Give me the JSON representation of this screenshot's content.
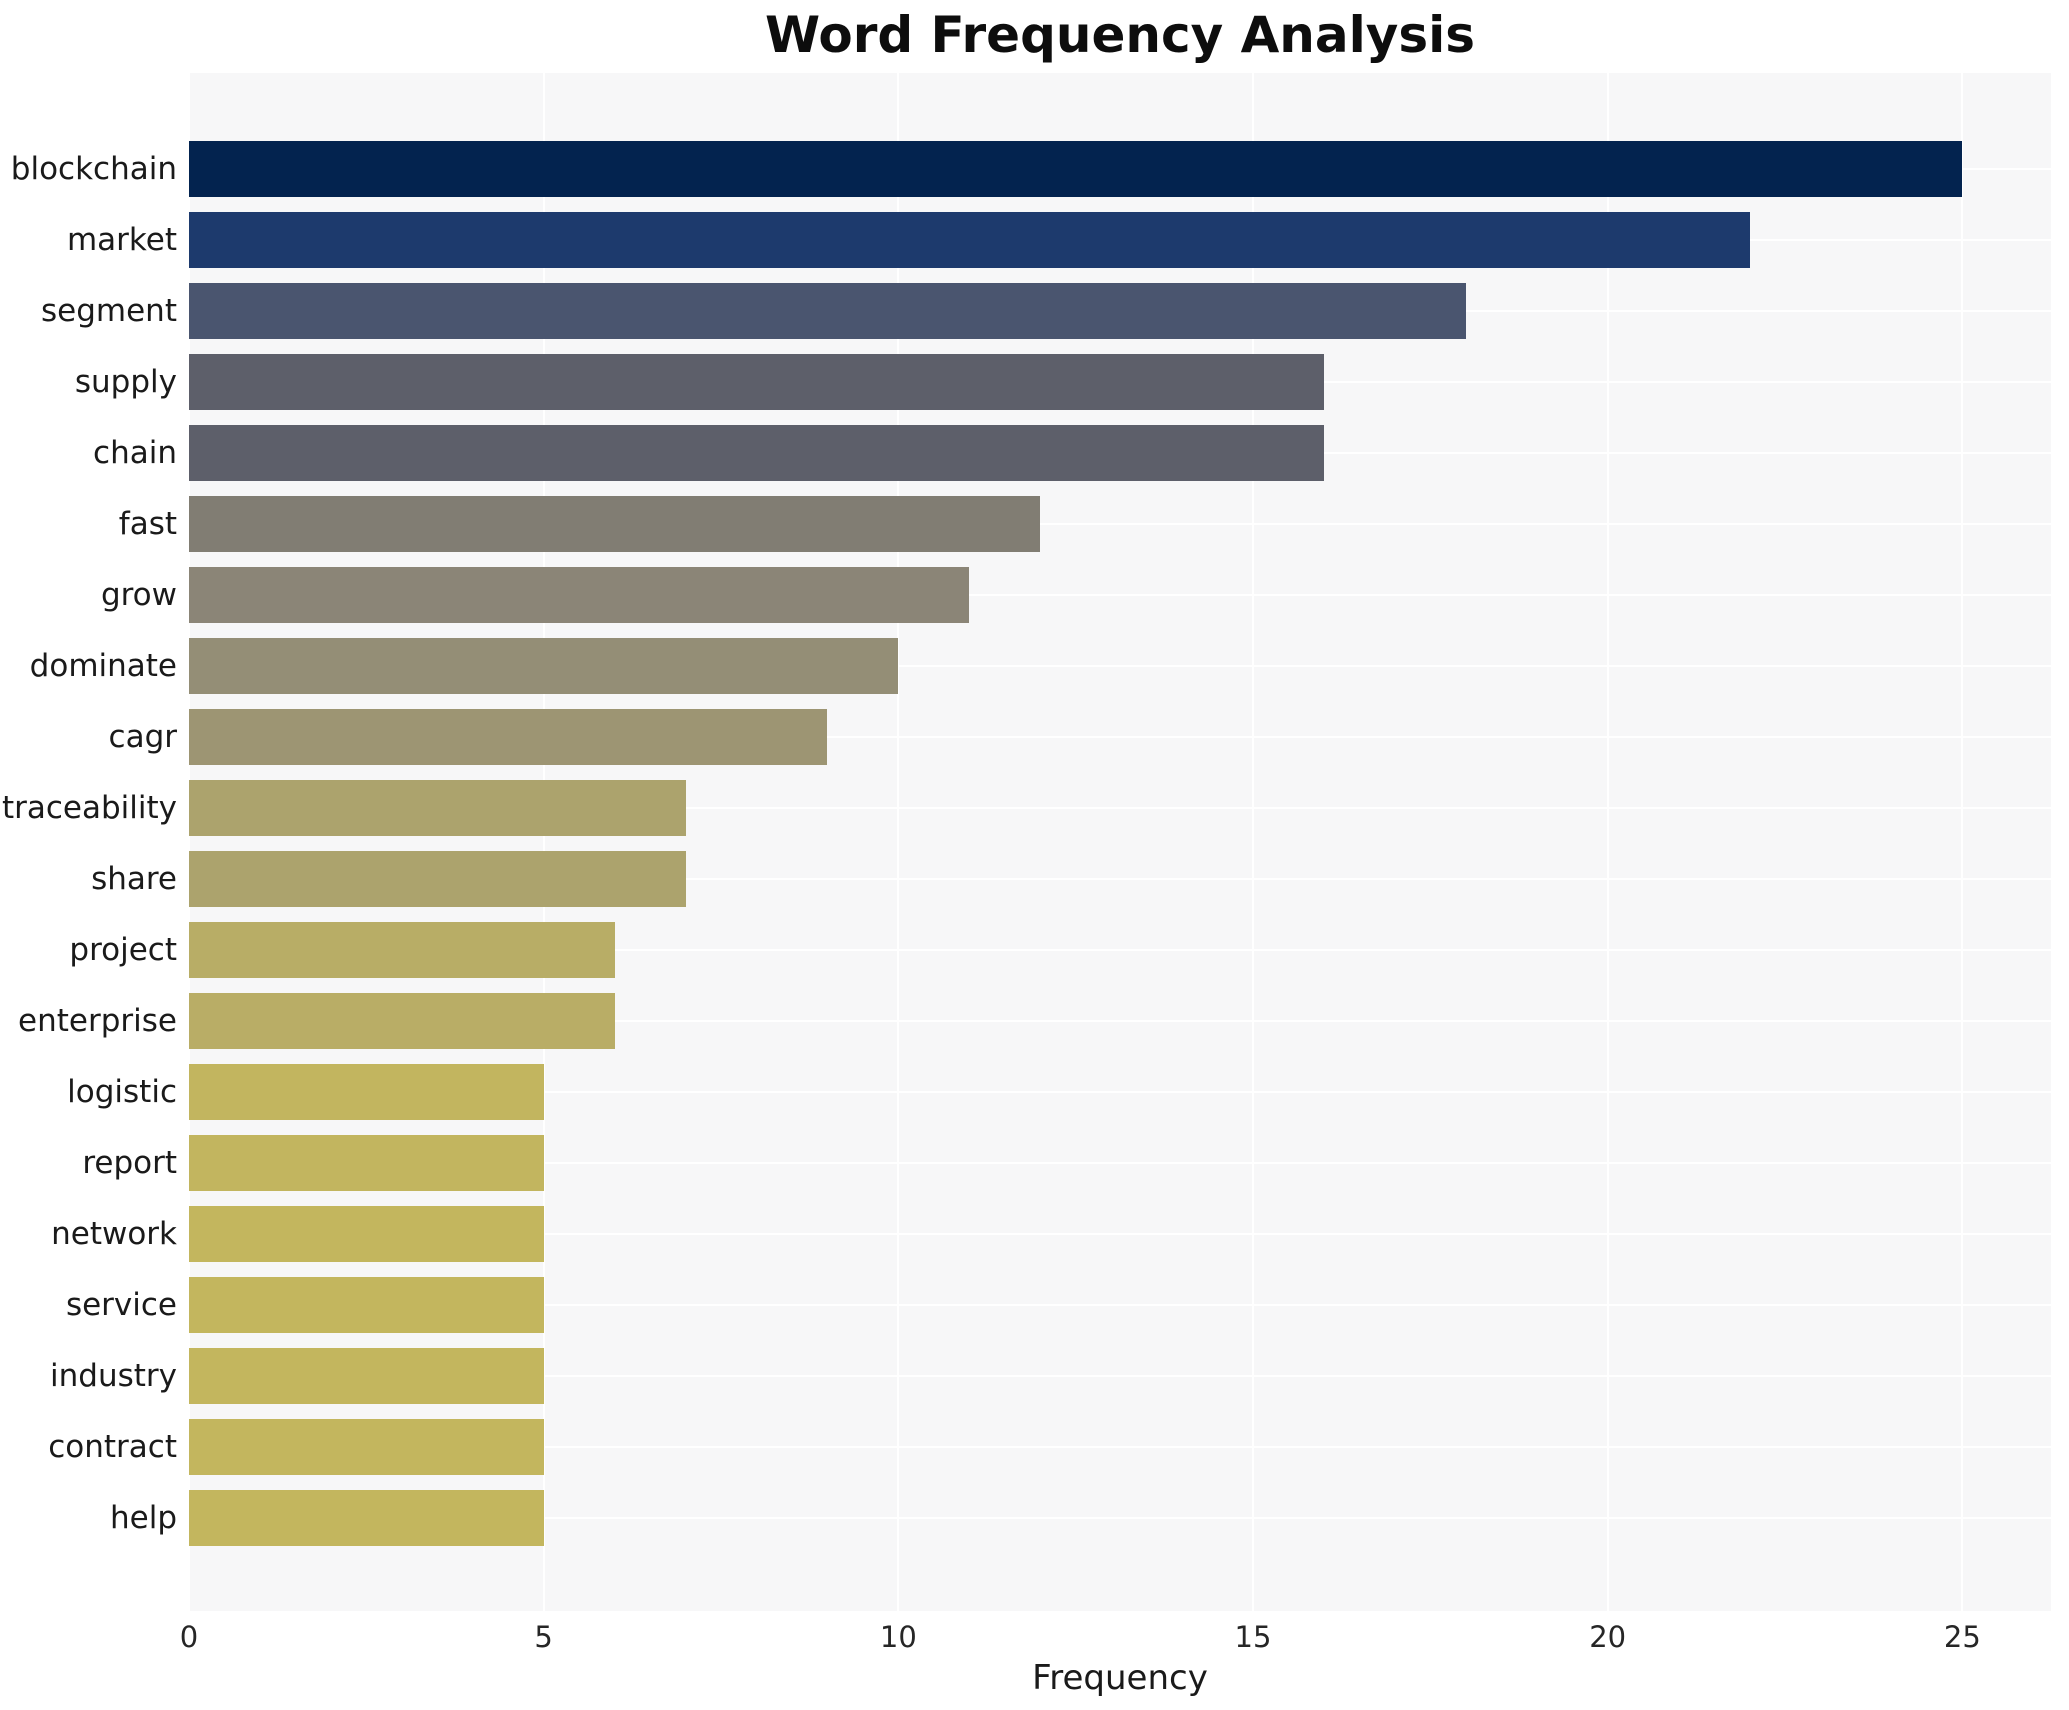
{
  "title": "Word Frequency Analysis",
  "chart_data": {
    "type": "bar",
    "orientation": "horizontal",
    "title": "Word Frequency Analysis",
    "xlabel": "Frequency",
    "ylabel": "",
    "xlim": [
      0,
      26.25
    ],
    "x_ticks": [
      0,
      5,
      10,
      15,
      20,
      25
    ],
    "grid": true,
    "legend": "none",
    "plot_background": "#f7f7f8",
    "grid_color": "#ffffff",
    "categories": [
      "blockchain",
      "market",
      "segment",
      "supply",
      "chain",
      "fast",
      "grow",
      "dominate",
      "cagr",
      "traceability",
      "share",
      "project",
      "enterprise",
      "logistic",
      "report",
      "network",
      "service",
      "industry",
      "contract",
      "help"
    ],
    "values": [
      25,
      22,
      18,
      16,
      16,
      12,
      11,
      10,
      9,
      7,
      7,
      6,
      6,
      5,
      5,
      5,
      5,
      5,
      5,
      5
    ],
    "bar_colors": [
      "#03234f",
      "#1d3a6d",
      "#4a556f",
      "#5d5f6a",
      "#5d5f6a",
      "#817d73",
      "#8b8577",
      "#948e76",
      "#9d9573",
      "#aca36d",
      "#aca36d",
      "#b8ad66",
      "#b9ad66",
      "#c2b55f",
      "#c2b55f",
      "#c3b65e",
      "#c3b65e",
      "#c3b65e",
      "#c3b65e",
      "#c3b65e"
    ]
  }
}
